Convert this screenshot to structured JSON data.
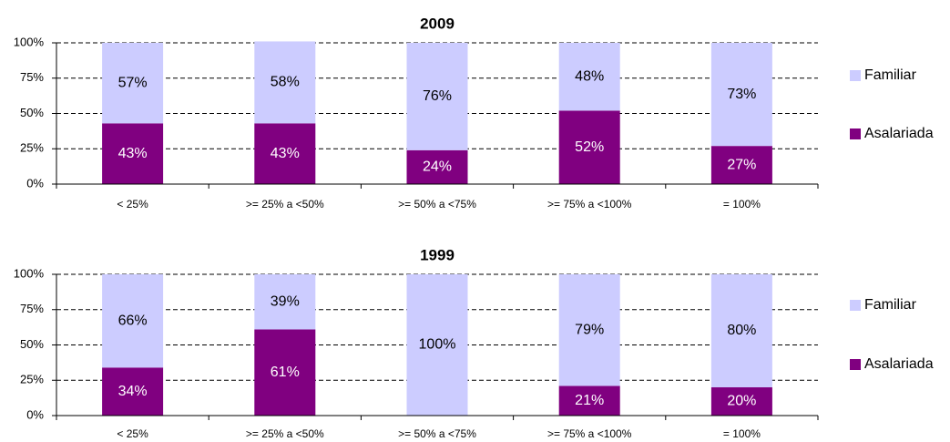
{
  "chart_data": [
    {
      "type": "bar",
      "stacked": true,
      "title": "2009",
      "categories": [
        "< 25%",
        ">= 25% a <50%",
        ">= 50% a <75%",
        ">= 75% a <100%",
        "= 100%"
      ],
      "series": [
        {
          "name": "Asalariada",
          "color": "#800080",
          "values": [
            43,
            43,
            24,
            52,
            27
          ],
          "value_labels": [
            "43%",
            "43%",
            "24%",
            "52%",
            "27%"
          ]
        },
        {
          "name": "Familiar",
          "color": "#ccccff",
          "values": [
            57,
            58,
            76,
            48,
            73
          ],
          "value_labels": [
            "57%",
            "58%",
            "76%",
            "48%",
            "73%"
          ]
        }
      ],
      "ylim": [
        0,
        100
      ],
      "yticks": [
        {
          "value": 0,
          "label": "0%"
        },
        {
          "value": 25,
          "label": "25%"
        },
        {
          "value": 50,
          "label": "50%"
        },
        {
          "value": 75,
          "label": "75%"
        },
        {
          "value": 100,
          "label": "100%"
        }
      ],
      "grid": true,
      "legend": "right"
    },
    {
      "type": "bar",
      "stacked": true,
      "title": "1999",
      "categories": [
        "< 25%",
        ">= 25% a <50%",
        ">= 50% a <75%",
        ">= 75% a <100%",
        "= 100%"
      ],
      "series": [
        {
          "name": "Asalariada",
          "color": "#800080",
          "values": [
            34,
            61,
            0,
            21,
            20
          ],
          "value_labels": [
            "34%",
            "61%",
            "0%",
            "21%",
            "20%"
          ]
        },
        {
          "name": "Familiar",
          "color": "#ccccff",
          "values": [
            66,
            39,
            100,
            79,
            80
          ],
          "value_labels": [
            "66%",
            "39%",
            "100%",
            "79%",
            "80%"
          ]
        }
      ],
      "ylim": [
        0,
        100
      ],
      "yticks": [
        {
          "value": 0,
          "label": "0%"
        },
        {
          "value": 25,
          "label": "25%"
        },
        {
          "value": 50,
          "label": "50%"
        },
        {
          "value": 75,
          "label": "75%"
        },
        {
          "value": 100,
          "label": "100%"
        }
      ],
      "grid": true,
      "legend": "right"
    }
  ]
}
